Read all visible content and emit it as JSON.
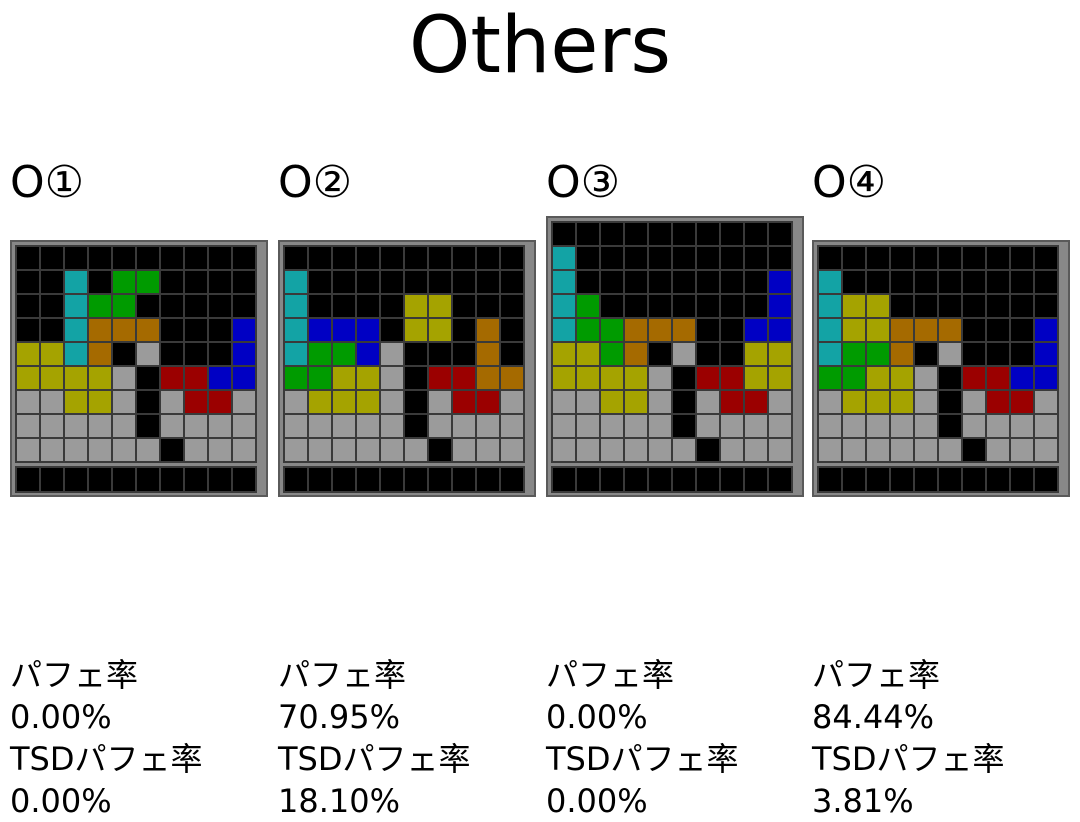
{
  "page": {
    "title": "Others"
  },
  "colors": {
    "I": "#13a3a5",
    "O": "#a5a300",
    "T": "#0000c4",
    "S": "#009b00",
    "Z": "#9b0000",
    "L": "#a56a00",
    "J": "#0000c4",
    "G": "#9b9b9b",
    "empty": "#000000",
    "grid": "#3a3a3a",
    "frame": "#5a5a5a"
  },
  "columns": [
    {
      "title": "O①",
      "label1": "パフェ率",
      "value1": "0.00%",
      "label2": "TSDパフェ率",
      "value2": "0.00%",
      "rows": [
        "..........",
        "..I.SS....",
        "..ISS.....",
        "..ILLL...J",
        "OOIL.G...J",
        "OOOOG.ZZJJ",
        "GGOOG.GZZG",
        "GGGGG.GGGG",
        "GGGGGG.GGG"
      ]
    },
    {
      "title": "O②",
      "label1": "パフェ率",
      "value1": "70.95%",
      "label2": "TSDパフェ率",
      "value2": "18.10%",
      "rows": [
        "..........",
        "I.........",
        "I....OO...",
        "ITTT.OO.L.",
        "ISSTG...L.",
        "SSOOG.ZZLL",
        "GOOOG.GZZG",
        "GGGGG.GGGG",
        "GGGGGG.GGG"
      ]
    },
    {
      "title": "O③",
      "label1": "パフェ率",
      "value1": "0.00%",
      "label2": "TSDパフェ率",
      "value2": "0.00%",
      "rows": [
        "..........",
        "I.........",
        "I........J",
        "IS.......J",
        "ISSLLL..JJ",
        "OOSL.G..OO",
        "OOOOG.ZZOO",
        "GGOOG.GZZG",
        "GGGGG.GGGG",
        "GGGGGG.GGG"
      ]
    },
    {
      "title": "O④",
      "label1": "パフェ率",
      "value1": "84.44%",
      "label2": "TSDパフェ率",
      "value2": "3.81%",
      "rows": [
        "..........",
        "I.........",
        "IOO.......",
        "IOOLLL...J",
        "ISSL.G...J",
        "SSOOG.ZZJJ",
        "GOOOG.GZZG",
        "GGGGG.GGGG",
        "GGGGGG.GGG"
      ]
    }
  ]
}
